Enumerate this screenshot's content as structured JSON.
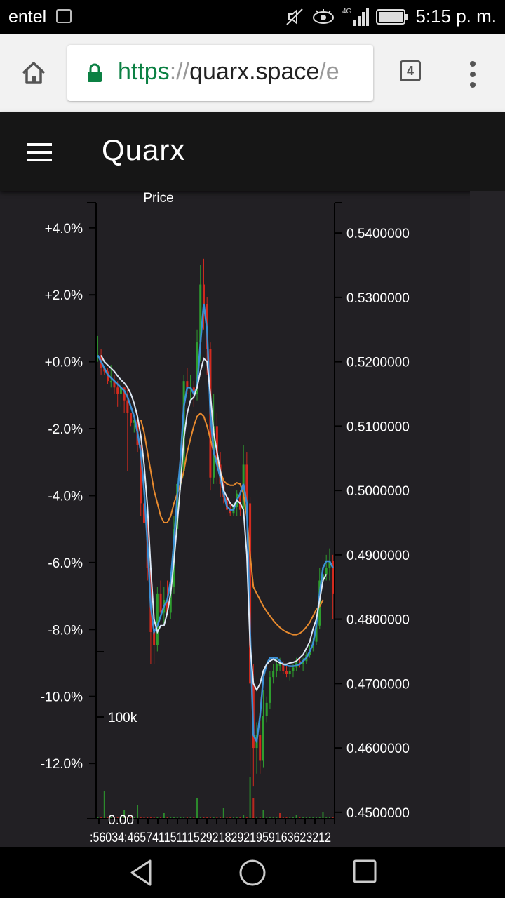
{
  "status": {
    "carrier": "entel",
    "network": "4G",
    "time": "5:15 p. m."
  },
  "browser": {
    "url_scheme": "https",
    "url_sep": "://",
    "url_host": "quarx.space",
    "url_rest": "/e",
    "tab_count": "4"
  },
  "app": {
    "title": "Quarx"
  },
  "colors": {
    "background": "#222024",
    "axis": "#000000",
    "up": "#2e9e2e",
    "down": "#d42a1e",
    "ma_orange": "#e88a2e",
    "ma_blue": "#3b8fd4",
    "ma_white": "#dde8f5"
  },
  "chart_data": {
    "type": "candlestick",
    "title": "Price",
    "left_axis": {
      "ticks": [
        "+4.0%",
        "+2.0%",
        "+0.0%",
        "-2.0%",
        "-4.0%",
        "-6.0%",
        "-8.0%",
        "-10.0%",
        "-12.0%"
      ],
      "values": [
        4,
        2,
        0,
        -2,
        -4,
        -6,
        -8,
        -10,
        -12
      ]
    },
    "right_axis": {
      "ticks": [
        "0.5400000",
        "0.5300000",
        "0.5200000",
        "0.5100000",
        "0.5000000",
        "0.4900000",
        "0.4800000",
        "0.4700000",
        "0.4600000",
        "0.4500000"
      ],
      "range": [
        0.449,
        0.544
      ]
    },
    "volume_axis": {
      "ticks": [
        "100k",
        "0.00"
      ]
    },
    "x_axis_text": ":56034:465741151115292182921959163623212",
    "candles": [
      [
        0.521,
        0.524,
        0.52,
        0.521
      ],
      [
        0.521,
        0.522,
        0.518,
        0.519
      ],
      [
        0.519,
        0.519,
        0.518,
        0.5185
      ],
      [
        0.5185,
        0.519,
        0.5165,
        0.517
      ],
      [
        0.517,
        0.5195,
        0.516,
        0.517
      ],
      [
        0.517,
        0.518,
        0.515,
        0.516
      ],
      [
        0.516,
        0.517,
        0.513,
        0.515
      ],
      [
        0.515,
        0.5175,
        0.513,
        0.516
      ],
      [
        0.516,
        0.516,
        0.512,
        0.514
      ],
      [
        0.514,
        0.516,
        0.503,
        0.512
      ],
      [
        0.512,
        0.512,
        0.51,
        0.5105
      ],
      [
        0.5105,
        0.511,
        0.509,
        0.511
      ],
      [
        0.511,
        0.512,
        0.506,
        0.507
      ],
      [
        0.507,
        0.507,
        0.496,
        0.498
      ],
      [
        0.498,
        0.499,
        0.493,
        0.495
      ],
      [
        0.495,
        0.496,
        0.486,
        0.488
      ],
      [
        0.488,
        0.489,
        0.473,
        0.478
      ],
      [
        0.478,
        0.481,
        0.473,
        0.476
      ],
      [
        0.476,
        0.485,
        0.475,
        0.484
      ],
      [
        0.484,
        0.486,
        0.48,
        0.481
      ],
      [
        0.481,
        0.485,
        0.479,
        0.483
      ],
      [
        0.483,
        0.486,
        0.481,
        0.481
      ],
      [
        0.481,
        0.487,
        0.48,
        0.485
      ],
      [
        0.485,
        0.496,
        0.484,
        0.494
      ],
      [
        0.494,
        0.502,
        0.493,
        0.501
      ],
      [
        0.501,
        0.506,
        0.5,
        0.503
      ],
      [
        0.503,
        0.518,
        0.502,
        0.517
      ],
      [
        0.517,
        0.519,
        0.515,
        0.516
      ],
      [
        0.516,
        0.518,
        0.514,
        0.516
      ],
      [
        0.516,
        0.517,
        0.513,
        0.515
      ],
      [
        0.515,
        0.525,
        0.514,
        0.523
      ],
      [
        0.523,
        0.535,
        0.52,
        0.532
      ],
      [
        0.532,
        0.536,
        0.525,
        0.529
      ],
      [
        0.529,
        0.53,
        0.518,
        0.522
      ],
      [
        0.522,
        0.523,
        0.5,
        0.502
      ],
      [
        0.502,
        0.515,
        0.501,
        0.51
      ],
      [
        0.51,
        0.512,
        0.501,
        0.504
      ],
      [
        0.504,
        0.506,
        0.499,
        0.501
      ],
      [
        0.501,
        0.502,
        0.498,
        0.499
      ],
      [
        0.499,
        0.5,
        0.496,
        0.497
      ],
      [
        0.497,
        0.498,
        0.496,
        0.4965
      ],
      [
        0.4965,
        0.498,
        0.496,
        0.4975
      ],
      [
        0.4975,
        0.5,
        0.496,
        0.4995
      ],
      [
        0.4995,
        0.5,
        0.496,
        0.497
      ],
      [
        0.497,
        0.507,
        0.4965,
        0.504
      ],
      [
        0.504,
        0.506,
        0.496,
        0.498
      ],
      [
        0.498,
        0.499,
        0.456,
        0.47
      ],
      [
        0.47,
        0.473,
        0.454,
        0.46
      ],
      [
        0.46,
        0.464,
        0.456,
        0.462
      ],
      [
        0.462,
        0.468,
        0.456,
        0.458
      ],
      [
        0.458,
        0.469,
        0.457,
        0.465
      ],
      [
        0.465,
        0.468,
        0.464,
        0.467
      ],
      [
        0.467,
        0.472,
        0.466,
        0.471
      ],
      [
        0.471,
        0.473,
        0.47,
        0.472
      ],
      [
        0.472,
        0.474,
        0.471,
        0.473
      ],
      [
        0.473,
        0.474,
        0.472,
        0.473
      ],
      [
        0.473,
        0.4735,
        0.4715,
        0.472
      ],
      [
        0.472,
        0.473,
        0.471,
        0.4715
      ],
      [
        0.4715,
        0.4725,
        0.4705,
        0.472
      ],
      [
        0.472,
        0.473,
        0.471,
        0.4725
      ],
      [
        0.4725,
        0.474,
        0.472,
        0.4735
      ],
      [
        0.4735,
        0.474,
        0.4725,
        0.473
      ],
      [
        0.473,
        0.474,
        0.472,
        0.4735
      ],
      [
        0.4735,
        0.475,
        0.473,
        0.4745
      ],
      [
        0.4745,
        0.476,
        0.474,
        0.4755
      ],
      [
        0.4755,
        0.477,
        0.475,
        0.4765
      ],
      [
        0.4765,
        0.48,
        0.476,
        0.479
      ],
      [
        0.479,
        0.488,
        0.4785,
        0.486
      ],
      [
        0.486,
        0.49,
        0.484,
        0.487
      ],
      [
        0.487,
        0.49,
        0.486,
        0.488
      ],
      [
        0.488,
        0.491,
        0.486,
        0.489
      ],
      [
        0.489,
        0.49,
        0.48,
        0.484
      ]
    ],
    "ma_orange": [
      null,
      null,
      null,
      null,
      null,
      null,
      null,
      null,
      null,
      null,
      null,
      null,
      null,
      0.511,
      0.509,
      0.506,
      0.503,
      0.5,
      0.498,
      0.496,
      0.495,
      0.495,
      0.496,
      0.498,
      0.4995,
      0.501,
      0.503,
      0.506,
      0.508,
      0.51,
      0.5115,
      0.512,
      0.5115,
      0.51,
      0.508,
      0.506,
      0.5045,
      0.503,
      0.5015,
      0.501,
      0.5008,
      0.5008,
      0.5012,
      0.501,
      0.4995,
      0.496,
      0.49,
      0.485,
      0.484,
      0.483,
      0.482,
      0.4812,
      0.4805,
      0.4798,
      0.4792,
      0.4787,
      0.4783,
      0.478,
      0.4778,
      0.4776,
      0.4776,
      0.4778,
      0.4782,
      0.4788,
      0.4795,
      0.4805,
      0.4815,
      0.482,
      0.483
    ],
    "ma_blue": [
      0.521,
      0.52,
      0.519,
      0.518,
      0.5175,
      0.517,
      0.5165,
      0.516,
      0.5155,
      0.5145,
      0.513,
      0.5115,
      0.509,
      0.506,
      0.5,
      0.492,
      0.482,
      0.478,
      0.479,
      0.4805,
      0.482,
      0.483,
      0.486,
      0.492,
      0.499,
      0.505,
      0.513,
      0.516,
      0.516,
      0.515,
      0.516,
      0.523,
      0.529,
      0.525,
      0.512,
      0.506,
      0.504,
      0.502,
      0.4995,
      0.4975,
      0.497,
      0.497,
      0.4985,
      0.4995,
      0.501,
      0.498,
      0.478,
      0.462,
      0.461,
      0.465,
      0.471,
      0.473,
      0.474,
      0.474,
      0.474,
      0.4735,
      0.473,
      0.4728,
      0.4727,
      0.4727,
      0.4728,
      0.473,
      0.4735,
      0.474,
      0.475,
      0.4762,
      0.479,
      0.484,
      0.488,
      0.489,
      0.489,
      0.488
    ],
    "ma_white": [
      null,
      0.521,
      0.52,
      0.5195,
      0.519,
      0.5185,
      0.5178,
      0.5172,
      0.5167,
      0.516,
      0.515,
      0.5135,
      0.5115,
      0.5085,
      0.504,
      0.4975,
      0.488,
      0.48,
      0.478,
      0.479,
      0.479,
      0.481,
      0.484,
      0.489,
      0.495,
      0.501,
      0.508,
      0.512,
      0.514,
      0.5145,
      0.516,
      0.5185,
      0.5205,
      0.52,
      0.515,
      0.509,
      0.506,
      0.503,
      0.5,
      0.499,
      0.498,
      0.4975,
      0.4985,
      0.498,
      0.497,
      0.49,
      0.476,
      0.47,
      0.469,
      0.47,
      0.472,
      0.473,
      0.4735,
      0.4738,
      0.4735,
      0.4732,
      0.473,
      0.473,
      0.4732,
      0.4733,
      0.4735,
      0.474,
      0.4745,
      0.4755,
      0.4765,
      0.4785,
      0.48,
      0.483,
      0.486,
      0.487
    ],
    "volume_spikes": [
      [
        2,
        40
      ],
      [
        8,
        12
      ],
      [
        12,
        20
      ],
      [
        20,
        8
      ],
      [
        30,
        30
      ],
      [
        38,
        15
      ],
      [
        44,
        5
      ],
      [
        46,
        60
      ],
      [
        47,
        30
      ],
      [
        50,
        12
      ],
      [
        55,
        8
      ],
      [
        60,
        6
      ],
      [
        68,
        10
      ]
    ]
  }
}
